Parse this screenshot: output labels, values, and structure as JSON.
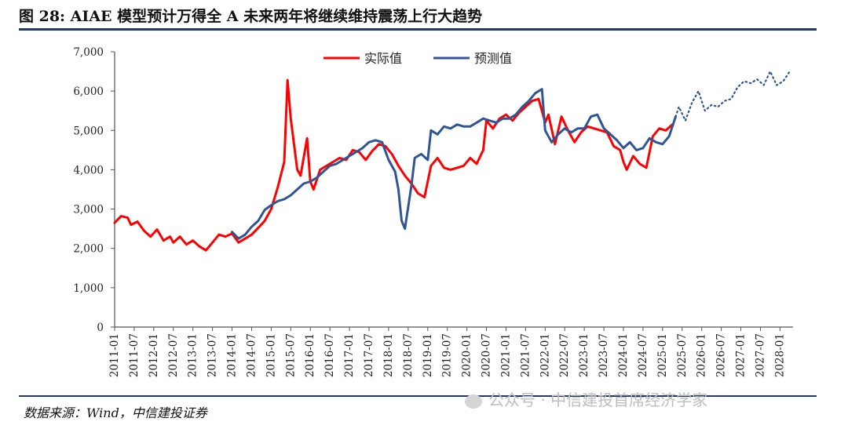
{
  "header": {
    "title": "图 28: AIAE 模型预计万得全 A 未来两年将继续维持震荡上行大趋势"
  },
  "footer": {
    "source": "数据来源：Wind，中信建投证券",
    "watermark": "公众号 · 中信建投首席经济学家"
  },
  "colors": {
    "actual": "#ff0000",
    "predicted": "#2f5597",
    "rule": "#1f3864"
  },
  "chart_data": {
    "type": "line",
    "title": "",
    "xlabel": "",
    "ylabel": "",
    "ylim": [
      0,
      7000
    ],
    "yticks": [
      0,
      1000,
      2000,
      3000,
      4000,
      5000,
      6000,
      7000
    ],
    "ytick_labels": [
      "0",
      "1,000",
      "2,000",
      "3,000",
      "4,000",
      "5,000",
      "6,000",
      "7,000"
    ],
    "xlim": [
      "2011-01",
      "2028-05"
    ],
    "xtick_labels": [
      "2011-01",
      "2011-07",
      "2012-01",
      "2012-07",
      "2013-01",
      "2013-07",
      "2014-01",
      "2014-07",
      "2015-01",
      "2015-07",
      "2016-01",
      "2016-07",
      "2017-01",
      "2017-07",
      "2018-01",
      "2018-07",
      "2019-01",
      "2019-07",
      "2020-01",
      "2020-07",
      "2021-01",
      "2021-07",
      "2022-01",
      "2022-07",
      "2023-01",
      "2023-07",
      "2024-01",
      "2024-07",
      "2025-01",
      "2025-07",
      "2026-01",
      "2026-07",
      "2027-01",
      "2027-07",
      "2028-01"
    ],
    "grid": false,
    "legend_position": "top-center",
    "series": [
      {
        "name": "实际值",
        "style": "solid",
        "color": "#ff0000",
        "points": [
          [
            "2011-01",
            2650
          ],
          [
            "2011-03",
            2820
          ],
          [
            "2011-05",
            2780
          ],
          [
            "2011-06",
            2600
          ],
          [
            "2011-08",
            2680
          ],
          [
            "2011-10",
            2450
          ],
          [
            "2011-12",
            2300
          ],
          [
            "2012-02",
            2480
          ],
          [
            "2012-04",
            2200
          ],
          [
            "2012-06",
            2300
          ],
          [
            "2012-07",
            2150
          ],
          [
            "2012-09",
            2300
          ],
          [
            "2012-11",
            2100
          ],
          [
            "2013-01",
            2200
          ],
          [
            "2013-03",
            2050
          ],
          [
            "2013-05",
            1950
          ],
          [
            "2013-07",
            2150
          ],
          [
            "2013-09",
            2350
          ],
          [
            "2013-11",
            2300
          ],
          [
            "2014-01",
            2380
          ],
          [
            "2014-03",
            2150
          ],
          [
            "2014-05",
            2250
          ],
          [
            "2014-07",
            2350
          ],
          [
            "2014-09",
            2520
          ],
          [
            "2014-11",
            2700
          ],
          [
            "2015-01",
            3000
          ],
          [
            "2015-03",
            3550
          ],
          [
            "2015-05",
            4200
          ],
          [
            "2015-06",
            6280
          ],
          [
            "2015-07",
            5300
          ],
          [
            "2015-09",
            4000
          ],
          [
            "2015-10",
            3850
          ],
          [
            "2015-12",
            4800
          ],
          [
            "2016-01",
            3700
          ],
          [
            "2016-02",
            3500
          ],
          [
            "2016-04",
            4000
          ],
          [
            "2016-06",
            4100
          ],
          [
            "2016-08",
            4200
          ],
          [
            "2016-10",
            4300
          ],
          [
            "2016-12",
            4250
          ],
          [
            "2017-02",
            4500
          ],
          [
            "2017-04",
            4450
          ],
          [
            "2017-06",
            4250
          ],
          [
            "2017-08",
            4480
          ],
          [
            "2017-10",
            4650
          ],
          [
            "2017-12",
            4600
          ],
          [
            "2018-02",
            4400
          ],
          [
            "2018-04",
            4100
          ],
          [
            "2018-06",
            3850
          ],
          [
            "2018-08",
            3650
          ],
          [
            "2018-10",
            3400
          ],
          [
            "2018-12",
            3300
          ],
          [
            "2019-02",
            4100
          ],
          [
            "2019-04",
            4300
          ],
          [
            "2019-06",
            4050
          ],
          [
            "2019-08",
            4000
          ],
          [
            "2019-10",
            4050
          ],
          [
            "2019-12",
            4100
          ],
          [
            "2020-02",
            4300
          ],
          [
            "2020-04",
            4150
          ],
          [
            "2020-06",
            4500
          ],
          [
            "2020-07",
            5250
          ],
          [
            "2020-09",
            5050
          ],
          [
            "2020-11",
            5300
          ],
          [
            "2021-01",
            5400
          ],
          [
            "2021-03",
            5250
          ],
          [
            "2021-05",
            5450
          ],
          [
            "2021-07",
            5600
          ],
          [
            "2021-09",
            5750
          ],
          [
            "2021-11",
            5800
          ],
          [
            "2022-01",
            5200
          ],
          [
            "2022-02",
            5400
          ],
          [
            "2022-04",
            4650
          ],
          [
            "2022-06",
            5350
          ],
          [
            "2022-08",
            5000
          ],
          [
            "2022-10",
            4700
          ],
          [
            "2022-12",
            4950
          ],
          [
            "2023-02",
            5100
          ],
          [
            "2023-04",
            5050
          ],
          [
            "2023-06",
            5000
          ],
          [
            "2023-08",
            4950
          ],
          [
            "2023-10",
            4600
          ],
          [
            "2023-12",
            4500
          ],
          [
            "2024-01",
            4200
          ],
          [
            "2024-02",
            4000
          ],
          [
            "2024-04",
            4350
          ],
          [
            "2024-06",
            4150
          ],
          [
            "2024-08",
            4050
          ],
          [
            "2024-10",
            4850
          ],
          [
            "2024-12",
            5050
          ],
          [
            "2025-02",
            5000
          ],
          [
            "2025-04",
            5150
          ]
        ]
      },
      {
        "name": "预测值",
        "style": "solid",
        "color": "#2f5597",
        "points": [
          [
            "2014-01",
            2420
          ],
          [
            "2014-03",
            2250
          ],
          [
            "2014-05",
            2350
          ],
          [
            "2014-07",
            2550
          ],
          [
            "2014-09",
            2700
          ],
          [
            "2014-11",
            2980
          ],
          [
            "2015-01",
            3100
          ],
          [
            "2015-03",
            3200
          ],
          [
            "2015-05",
            3250
          ],
          [
            "2015-07",
            3350
          ],
          [
            "2015-09",
            3500
          ],
          [
            "2015-11",
            3650
          ],
          [
            "2016-01",
            3700
          ],
          [
            "2016-03",
            3800
          ],
          [
            "2016-05",
            3950
          ],
          [
            "2016-07",
            4100
          ],
          [
            "2016-09",
            4150
          ],
          [
            "2016-11",
            4250
          ],
          [
            "2017-01",
            4350
          ],
          [
            "2017-03",
            4450
          ],
          [
            "2017-05",
            4550
          ],
          [
            "2017-07",
            4700
          ],
          [
            "2017-09",
            4750
          ],
          [
            "2017-11",
            4700
          ],
          [
            "2018-01",
            4250
          ],
          [
            "2018-03",
            3950
          ],
          [
            "2018-04",
            3500
          ],
          [
            "2018-05",
            2700
          ],
          [
            "2018-06",
            2500
          ],
          [
            "2018-08",
            3600
          ],
          [
            "2018-09",
            4300
          ],
          [
            "2018-11",
            4400
          ],
          [
            "2019-01",
            4250
          ],
          [
            "2019-02",
            5000
          ],
          [
            "2019-04",
            4900
          ],
          [
            "2019-06",
            5100
          ],
          [
            "2019-08",
            5050
          ],
          [
            "2019-10",
            5150
          ],
          [
            "2019-12",
            5100
          ],
          [
            "2020-02",
            5100
          ],
          [
            "2020-04",
            5200
          ],
          [
            "2020-06",
            5300
          ],
          [
            "2020-08",
            5250
          ],
          [
            "2020-10",
            5200
          ],
          [
            "2020-12",
            5300
          ],
          [
            "2021-02",
            5300
          ],
          [
            "2021-04",
            5400
          ],
          [
            "2021-06",
            5600
          ],
          [
            "2021-08",
            5750
          ],
          [
            "2021-10",
            5950
          ],
          [
            "2021-12",
            6050
          ],
          [
            "2022-01",
            5000
          ],
          [
            "2022-03",
            4700
          ],
          [
            "2022-05",
            4900
          ],
          [
            "2022-07",
            5050
          ],
          [
            "2022-09",
            4950
          ],
          [
            "2022-11",
            5050
          ],
          [
            "2023-01",
            5050
          ],
          [
            "2023-03",
            5350
          ],
          [
            "2023-05",
            5400
          ],
          [
            "2023-07",
            5050
          ],
          [
            "2023-09",
            4900
          ],
          [
            "2023-11",
            4750
          ],
          [
            "2024-01",
            4550
          ],
          [
            "2024-03",
            4700
          ],
          [
            "2024-05",
            4500
          ],
          [
            "2024-07",
            4550
          ],
          [
            "2024-09",
            4800
          ],
          [
            "2024-11",
            4700
          ],
          [
            "2025-01",
            4650
          ],
          [
            "2025-03",
            4850
          ],
          [
            "2025-05",
            5350
          ]
        ]
      },
      {
        "name": "",
        "style": "dotted",
        "color": "#2f5597",
        "points": [
          [
            "2025-05",
            5350
          ],
          [
            "2025-06",
            5600
          ],
          [
            "2025-08",
            5250
          ],
          [
            "2025-10",
            5700
          ],
          [
            "2025-12",
            6000
          ],
          [
            "2026-02",
            5500
          ],
          [
            "2026-04",
            5650
          ],
          [
            "2026-06",
            5600
          ],
          [
            "2026-08",
            5750
          ],
          [
            "2026-10",
            5800
          ],
          [
            "2026-12",
            6100
          ],
          [
            "2027-02",
            6250
          ],
          [
            "2027-04",
            6200
          ],
          [
            "2027-06",
            6300
          ],
          [
            "2027-08",
            6150
          ],
          [
            "2027-10",
            6500
          ],
          [
            "2027-12",
            6150
          ],
          [
            "2028-02",
            6250
          ],
          [
            "2028-04",
            6500
          ]
        ]
      }
    ]
  }
}
